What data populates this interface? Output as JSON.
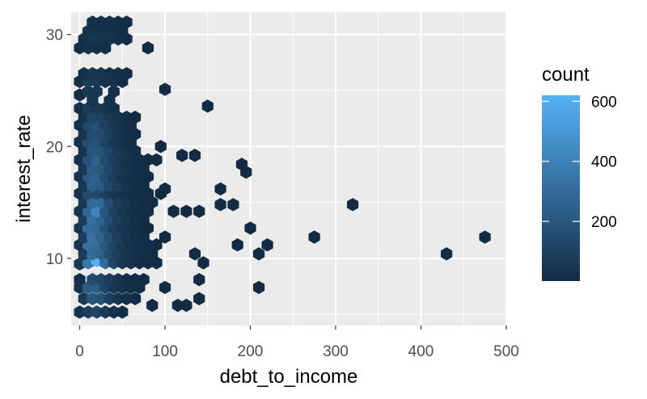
{
  "chart_data": {
    "type": "hexbin",
    "xlabel": "debt_to_income",
    "ylabel": "interest_rate",
    "xlim": [
      -10,
      500
    ],
    "ylim": [
      4,
      32
    ],
    "x_ticks": [
      0,
      100,
      200,
      300,
      400,
      500
    ],
    "x_tick_labels": [
      "0",
      "100",
      "200",
      "300",
      "400",
      "500"
    ],
    "y_ticks": [
      10,
      20,
      30
    ],
    "y_tick_labels": [
      "10",
      "20",
      "30"
    ],
    "grid": true,
    "legend": {
      "title": "count",
      "placement": "right",
      "range": [
        1,
        620
      ],
      "ticks": [
        200,
        400,
        600
      ],
      "tick_labels": [
        "200",
        "400",
        "600"
      ],
      "color_low": "#132b43",
      "color_high": "#56b1f7"
    },
    "bins": [
      {
        "x": 0,
        "y": 5.2,
        "count": 40
      },
      {
        "x": 10,
        "y": 5.2,
        "count": 90
      },
      {
        "x": 20,
        "y": 5.2,
        "count": 120
      },
      {
        "x": 30,
        "y": 5.2,
        "count": 70
      },
      {
        "x": 40,
        "y": 5.2,
        "count": 30
      },
      {
        "x": 50,
        "y": 5.2,
        "count": 10
      },
      {
        "x": 5,
        "y": 6.4,
        "count": 60
      },
      {
        "x": 15,
        "y": 6.4,
        "count": 200
      },
      {
        "x": 25,
        "y": 6.4,
        "count": 180
      },
      {
        "x": 35,
        "y": 6.4,
        "count": 100
      },
      {
        "x": 45,
        "y": 6.4,
        "count": 50
      },
      {
        "x": 55,
        "y": 6.4,
        "count": 20
      },
      {
        "x": 65,
        "y": 6.4,
        "count": 10
      },
      {
        "x": 85,
        "y": 5.8,
        "count": 5
      },
      {
        "x": 115,
        "y": 5.8,
        "count": 5
      },
      {
        "x": 125,
        "y": 5.8,
        "count": 5
      },
      {
        "x": 140,
        "y": 6.4,
        "count": 5
      },
      {
        "x": 0,
        "y": 7.4,
        "count": 30
      },
      {
        "x": 10,
        "y": 7.4,
        "count": 220
      },
      {
        "x": 20,
        "y": 7.4,
        "count": 230
      },
      {
        "x": 30,
        "y": 7.4,
        "count": 110
      },
      {
        "x": 40,
        "y": 7.4,
        "count": 60
      },
      {
        "x": 50,
        "y": 7.4,
        "count": 30
      },
      {
        "x": 60,
        "y": 7.4,
        "count": 15
      },
      {
        "x": 70,
        "y": 7.4,
        "count": 10
      },
      {
        "x": 100,
        "y": 7.4,
        "count": 5
      },
      {
        "x": 210,
        "y": 7.4,
        "count": 5
      },
      {
        "x": 0,
        "y": 8.1,
        "count": 20
      },
      {
        "x": 15,
        "y": 8.1,
        "count": 150
      },
      {
        "x": 25,
        "y": 8.1,
        "count": 130
      },
      {
        "x": 35,
        "y": 8.1,
        "count": 80
      },
      {
        "x": 45,
        "y": 8.1,
        "count": 40
      },
      {
        "x": 55,
        "y": 8.1,
        "count": 20
      },
      {
        "x": 65,
        "y": 8.1,
        "count": 10
      },
      {
        "x": 75,
        "y": 8.1,
        "count": 5
      },
      {
        "x": 140,
        "y": 8.1,
        "count": 5
      },
      {
        "x": 0,
        "y": 9.5,
        "count": 60
      },
      {
        "x": 10,
        "y": 9.6,
        "count": 350
      },
      {
        "x": 20,
        "y": 9.8,
        "count": 610
      },
      {
        "x": 30,
        "y": 9.6,
        "count": 300
      },
      {
        "x": 40,
        "y": 9.6,
        "count": 120
      },
      {
        "x": 50,
        "y": 9.6,
        "count": 60
      },
      {
        "x": 60,
        "y": 9.6,
        "count": 30
      },
      {
        "x": 70,
        "y": 9.6,
        "count": 20
      },
      {
        "x": 80,
        "y": 9.6,
        "count": 10
      },
      {
        "x": 90,
        "y": 9.6,
        "count": 5
      },
      {
        "x": 145,
        "y": 9.6,
        "count": 5
      },
      {
        "x": 5,
        "y": 10.4,
        "count": 80
      },
      {
        "x": 15,
        "y": 10.4,
        "count": 300
      },
      {
        "x": 25,
        "y": 10.4,
        "count": 250
      },
      {
        "x": 35,
        "y": 10.4,
        "count": 150
      },
      {
        "x": 45,
        "y": 10.4,
        "count": 90
      },
      {
        "x": 55,
        "y": 10.4,
        "count": 50
      },
      {
        "x": 65,
        "y": 10.4,
        "count": 30
      },
      {
        "x": 75,
        "y": 10.4,
        "count": 15
      },
      {
        "x": 85,
        "y": 10.4,
        "count": 5
      },
      {
        "x": 135,
        "y": 10.4,
        "count": 5
      },
      {
        "x": 210,
        "y": 10.4,
        "count": 5
      },
      {
        "x": 430,
        "y": 10.4,
        "count": 5
      },
      {
        "x": 0,
        "y": 11.2,
        "count": 40
      },
      {
        "x": 10,
        "y": 11.2,
        "count": 320
      },
      {
        "x": 20,
        "y": 11.2,
        "count": 300
      },
      {
        "x": 30,
        "y": 11.2,
        "count": 200
      },
      {
        "x": 40,
        "y": 11.2,
        "count": 110
      },
      {
        "x": 50,
        "y": 11.2,
        "count": 60
      },
      {
        "x": 60,
        "y": 11.2,
        "count": 30
      },
      {
        "x": 70,
        "y": 11.2,
        "count": 20
      },
      {
        "x": 80,
        "y": 11.2,
        "count": 10
      },
      {
        "x": 90,
        "y": 11.2,
        "count": 5
      },
      {
        "x": 185,
        "y": 11.2,
        "count": 5
      },
      {
        "x": 220,
        "y": 11.2,
        "count": 5
      },
      {
        "x": 5,
        "y": 11.9,
        "count": 90
      },
      {
        "x": 15,
        "y": 11.9,
        "count": 330
      },
      {
        "x": 25,
        "y": 11.9,
        "count": 260
      },
      {
        "x": 35,
        "y": 11.9,
        "count": 170
      },
      {
        "x": 45,
        "y": 11.9,
        "count": 100
      },
      {
        "x": 55,
        "y": 11.9,
        "count": 50
      },
      {
        "x": 65,
        "y": 11.9,
        "count": 25
      },
      {
        "x": 75,
        "y": 11.9,
        "count": 10
      },
      {
        "x": 100,
        "y": 11.9,
        "count": 5
      },
      {
        "x": 275,
        "y": 11.9,
        "count": 5
      },
      {
        "x": 475,
        "y": 11.9,
        "count": 5
      },
      {
        "x": 0,
        "y": 12.7,
        "count": 50
      },
      {
        "x": 10,
        "y": 12.7,
        "count": 300
      },
      {
        "x": 20,
        "y": 12.7,
        "count": 280
      },
      {
        "x": 30,
        "y": 12.7,
        "count": 180
      },
      {
        "x": 40,
        "y": 12.7,
        "count": 90
      },
      {
        "x": 50,
        "y": 12.7,
        "count": 50
      },
      {
        "x": 60,
        "y": 12.7,
        "count": 30
      },
      {
        "x": 70,
        "y": 12.7,
        "count": 15
      },
      {
        "x": 80,
        "y": 12.7,
        "count": 5
      },
      {
        "x": 200,
        "y": 12.7,
        "count": 5
      },
      {
        "x": 5,
        "y": 13.5,
        "count": 80
      },
      {
        "x": 15,
        "y": 13.5,
        "count": 320
      },
      {
        "x": 25,
        "y": 13.5,
        "count": 270
      },
      {
        "x": 35,
        "y": 13.5,
        "count": 160
      },
      {
        "x": 45,
        "y": 13.5,
        "count": 90
      },
      {
        "x": 55,
        "y": 13.5,
        "count": 50
      },
      {
        "x": 65,
        "y": 13.5,
        "count": 25
      },
      {
        "x": 75,
        "y": 13.5,
        "count": 10
      },
      {
        "x": 0,
        "y": 14.2,
        "count": 40
      },
      {
        "x": 10,
        "y": 14.2,
        "count": 280
      },
      {
        "x": 20,
        "y": 14.2,
        "count": 420
      },
      {
        "x": 30,
        "y": 14.2,
        "count": 200
      },
      {
        "x": 40,
        "y": 14.2,
        "count": 100
      },
      {
        "x": 50,
        "y": 14.2,
        "count": 60
      },
      {
        "x": 60,
        "y": 14.2,
        "count": 30
      },
      {
        "x": 70,
        "y": 14.2,
        "count": 15
      },
      {
        "x": 80,
        "y": 14.2,
        "count": 5
      },
      {
        "x": 110,
        "y": 14.2,
        "count": 5
      },
      {
        "x": 125,
        "y": 14.2,
        "count": 5
      },
      {
        "x": 140,
        "y": 14.2,
        "count": 5
      },
      {
        "x": 5,
        "y": 15.0,
        "count": 70
      },
      {
        "x": 15,
        "y": 15.0,
        "count": 290
      },
      {
        "x": 25,
        "y": 15.0,
        "count": 300
      },
      {
        "x": 35,
        "y": 15.0,
        "count": 170
      },
      {
        "x": 45,
        "y": 15.0,
        "count": 90
      },
      {
        "x": 55,
        "y": 15.0,
        "count": 50
      },
      {
        "x": 65,
        "y": 15.0,
        "count": 25
      },
      {
        "x": 75,
        "y": 15.0,
        "count": 10
      },
      {
        "x": 85,
        "y": 15.0,
        "count": 5
      },
      {
        "x": 165,
        "y": 14.8,
        "count": 5
      },
      {
        "x": 180,
        "y": 14.8,
        "count": 5
      },
      {
        "x": 320,
        "y": 14.8,
        "count": 5
      },
      {
        "x": 0,
        "y": 15.8,
        "count": 30
      },
      {
        "x": 10,
        "y": 15.8,
        "count": 150
      },
      {
        "x": 20,
        "y": 15.8,
        "count": 140
      },
      {
        "x": 30,
        "y": 15.8,
        "count": 90
      },
      {
        "x": 40,
        "y": 15.8,
        "count": 50
      },
      {
        "x": 50,
        "y": 15.8,
        "count": 30
      },
      {
        "x": 60,
        "y": 15.8,
        "count": 15
      },
      {
        "x": 70,
        "y": 15.8,
        "count": 10
      },
      {
        "x": 80,
        "y": 15.8,
        "count": 5
      },
      {
        "x": 95,
        "y": 15.8,
        "count": 5
      },
      {
        "x": 5,
        "y": 16.5,
        "count": 60
      },
      {
        "x": 15,
        "y": 16.5,
        "count": 250
      },
      {
        "x": 25,
        "y": 16.5,
        "count": 220
      },
      {
        "x": 35,
        "y": 16.5,
        "count": 140
      },
      {
        "x": 45,
        "y": 16.5,
        "count": 80
      },
      {
        "x": 55,
        "y": 16.5,
        "count": 40
      },
      {
        "x": 65,
        "y": 16.5,
        "count": 20
      },
      {
        "x": 75,
        "y": 16.5,
        "count": 10
      },
      {
        "x": 100,
        "y": 16.2,
        "count": 5
      },
      {
        "x": 165,
        "y": 16.2,
        "count": 5
      },
      {
        "x": 0,
        "y": 17.3,
        "count": 40
      },
      {
        "x": 10,
        "y": 17.3,
        "count": 220
      },
      {
        "x": 20,
        "y": 17.3,
        "count": 260
      },
      {
        "x": 30,
        "y": 17.3,
        "count": 150
      },
      {
        "x": 40,
        "y": 17.3,
        "count": 80
      },
      {
        "x": 50,
        "y": 17.3,
        "count": 40
      },
      {
        "x": 60,
        "y": 17.3,
        "count": 20
      },
      {
        "x": 70,
        "y": 17.3,
        "count": 10
      },
      {
        "x": 80,
        "y": 17.3,
        "count": 5
      },
      {
        "x": 195,
        "y": 17.7,
        "count": 5
      },
      {
        "x": 5,
        "y": 18.0,
        "count": 60
      },
      {
        "x": 15,
        "y": 18.0,
        "count": 230
      },
      {
        "x": 25,
        "y": 18.0,
        "count": 210
      },
      {
        "x": 35,
        "y": 18.0,
        "count": 130
      },
      {
        "x": 45,
        "y": 18.0,
        "count": 70
      },
      {
        "x": 55,
        "y": 18.0,
        "count": 40
      },
      {
        "x": 65,
        "y": 18.0,
        "count": 20
      },
      {
        "x": 75,
        "y": 18.0,
        "count": 10
      },
      {
        "x": 190,
        "y": 18.4,
        "count": 5
      },
      {
        "x": 0,
        "y": 18.8,
        "count": 30
      },
      {
        "x": 10,
        "y": 18.8,
        "count": 180
      },
      {
        "x": 20,
        "y": 18.8,
        "count": 250
      },
      {
        "x": 30,
        "y": 18.8,
        "count": 160
      },
      {
        "x": 40,
        "y": 18.8,
        "count": 90
      },
      {
        "x": 50,
        "y": 18.8,
        "count": 50
      },
      {
        "x": 60,
        "y": 18.8,
        "count": 25
      },
      {
        "x": 70,
        "y": 18.8,
        "count": 15
      },
      {
        "x": 80,
        "y": 18.8,
        "count": 5
      },
      {
        "x": 90,
        "y": 18.8,
        "count": 5
      },
      {
        "x": 120,
        "y": 19.2,
        "count": 5
      },
      {
        "x": 135,
        "y": 19.2,
        "count": 5
      },
      {
        "x": 5,
        "y": 19.6,
        "count": 50
      },
      {
        "x": 15,
        "y": 19.6,
        "count": 200
      },
      {
        "x": 25,
        "y": 19.6,
        "count": 190
      },
      {
        "x": 35,
        "y": 19.6,
        "count": 120
      },
      {
        "x": 45,
        "y": 19.6,
        "count": 70
      },
      {
        "x": 55,
        "y": 19.6,
        "count": 35
      },
      {
        "x": 65,
        "y": 19.6,
        "count": 15
      },
      {
        "x": 95,
        "y": 20.0,
        "count": 5
      },
      {
        "x": 0,
        "y": 20.4,
        "count": 30
      },
      {
        "x": 10,
        "y": 20.4,
        "count": 160
      },
      {
        "x": 20,
        "y": 20.4,
        "count": 180
      },
      {
        "x": 30,
        "y": 20.4,
        "count": 110
      },
      {
        "x": 40,
        "y": 20.4,
        "count": 60
      },
      {
        "x": 50,
        "y": 20.4,
        "count": 30
      },
      {
        "x": 60,
        "y": 20.4,
        "count": 15
      },
      {
        "x": 5,
        "y": 21.1,
        "count": 50
      },
      {
        "x": 15,
        "y": 21.1,
        "count": 160
      },
      {
        "x": 25,
        "y": 21.1,
        "count": 150
      },
      {
        "x": 35,
        "y": 21.1,
        "count": 100
      },
      {
        "x": 45,
        "y": 21.1,
        "count": 50
      },
      {
        "x": 55,
        "y": 21.1,
        "count": 25
      },
      {
        "x": 65,
        "y": 21.1,
        "count": 10
      },
      {
        "x": 0,
        "y": 21.9,
        "count": 20
      },
      {
        "x": 10,
        "y": 21.9,
        "count": 140
      },
      {
        "x": 20,
        "y": 21.9,
        "count": 170
      },
      {
        "x": 30,
        "y": 21.9,
        "count": 100
      },
      {
        "x": 40,
        "y": 21.9,
        "count": 60
      },
      {
        "x": 50,
        "y": 21.9,
        "count": 30
      },
      {
        "x": 60,
        "y": 21.9,
        "count": 10
      },
      {
        "x": 5,
        "y": 22.6,
        "count": 40
      },
      {
        "x": 15,
        "y": 22.6,
        "count": 120
      },
      {
        "x": 25,
        "y": 22.6,
        "count": 110
      },
      {
        "x": 35,
        "y": 22.6,
        "count": 70
      },
      {
        "x": 45,
        "y": 22.6,
        "count": 40
      },
      {
        "x": 55,
        "y": 22.6,
        "count": 20
      },
      {
        "x": 65,
        "y": 22.6,
        "count": 5
      },
      {
        "x": 0,
        "y": 23.4,
        "count": 20
      },
      {
        "x": 10,
        "y": 23.4,
        "count": 80
      },
      {
        "x": 20,
        "y": 23.4,
        "count": 70
      },
      {
        "x": 30,
        "y": 23.4,
        "count": 50
      },
      {
        "x": 40,
        "y": 23.4,
        "count": 30
      },
      {
        "x": 150,
        "y": 23.6,
        "count": 5
      },
      {
        "x": 15,
        "y": 24.1,
        "count": 40
      },
      {
        "x": 35,
        "y": 24.1,
        "count": 30
      },
      {
        "x": 0,
        "y": 24.6,
        "count": 10
      },
      {
        "x": 10,
        "y": 24.9,
        "count": 60
      },
      {
        "x": 20,
        "y": 24.9,
        "count": 50
      },
      {
        "x": 40,
        "y": 24.9,
        "count": 20
      },
      {
        "x": 100,
        "y": 25.1,
        "count": 5
      },
      {
        "x": 0,
        "y": 25.8,
        "count": 20
      },
      {
        "x": 10,
        "y": 25.8,
        "count": 70
      },
      {
        "x": 20,
        "y": 25.8,
        "count": 60
      },
      {
        "x": 30,
        "y": 25.8,
        "count": 40
      },
      {
        "x": 40,
        "y": 25.8,
        "count": 30
      },
      {
        "x": 50,
        "y": 25.8,
        "count": 10
      },
      {
        "x": 5,
        "y": 26.5,
        "count": 30
      },
      {
        "x": 15,
        "y": 26.5,
        "count": 50
      },
      {
        "x": 25,
        "y": 26.5,
        "count": 40
      },
      {
        "x": 35,
        "y": 26.5,
        "count": 30
      },
      {
        "x": 45,
        "y": 26.5,
        "count": 20
      },
      {
        "x": 55,
        "y": 26.5,
        "count": 10
      },
      {
        "x": 0,
        "y": 28.8,
        "count": 10
      },
      {
        "x": 10,
        "y": 28.8,
        "count": 30
      },
      {
        "x": 20,
        "y": 28.8,
        "count": 20
      },
      {
        "x": 30,
        "y": 28.8,
        "count": 15
      },
      {
        "x": 80,
        "y": 28.8,
        "count": 5
      },
      {
        "x": 5,
        "y": 29.6,
        "count": 30
      },
      {
        "x": 15,
        "y": 29.6,
        "count": 50
      },
      {
        "x": 25,
        "y": 29.6,
        "count": 40
      },
      {
        "x": 35,
        "y": 29.6,
        "count": 30
      },
      {
        "x": 45,
        "y": 29.6,
        "count": 20
      },
      {
        "x": 55,
        "y": 29.6,
        "count": 10
      },
      {
        "x": 10,
        "y": 30.3,
        "count": 40
      },
      {
        "x": 20,
        "y": 30.3,
        "count": 30
      },
      {
        "x": 30,
        "y": 30.3,
        "count": 30
      },
      {
        "x": 40,
        "y": 30.3,
        "count": 20
      },
      {
        "x": 50,
        "y": 30.3,
        "count": 10
      },
      {
        "x": 15,
        "y": 31.1,
        "count": 20
      },
      {
        "x": 25,
        "y": 31.1,
        "count": 20
      },
      {
        "x": 35,
        "y": 31.1,
        "count": 15
      },
      {
        "x": 45,
        "y": 31.1,
        "count": 10
      },
      {
        "x": 55,
        "y": 31.1,
        "count": 10
      }
    ]
  }
}
